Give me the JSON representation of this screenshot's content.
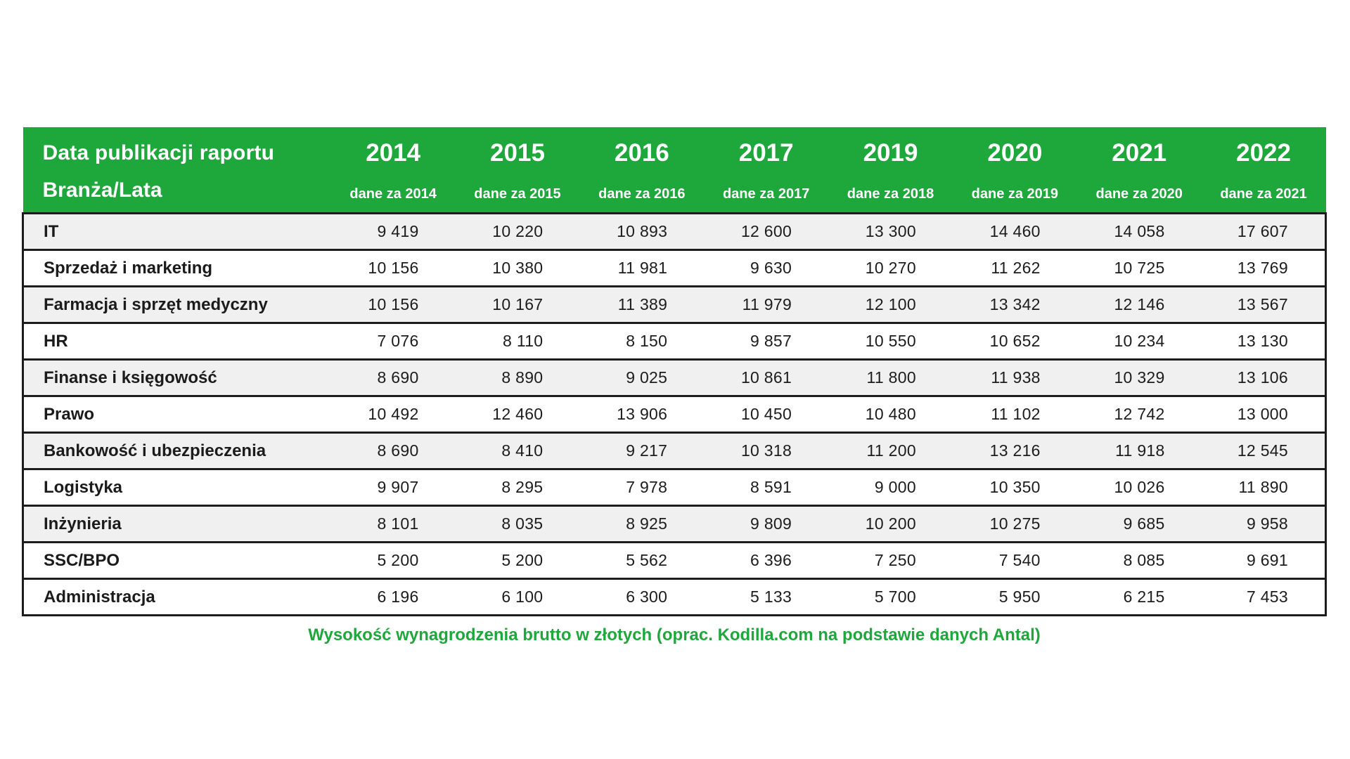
{
  "header": {
    "title_line1": "Data publikacji raportu",
    "title_line2": "Branża/Lata",
    "columns": [
      {
        "year": "2014",
        "sub": "dane za 2014"
      },
      {
        "year": "2015",
        "sub": "dane za 2015"
      },
      {
        "year": "2016",
        "sub": "dane za 2016"
      },
      {
        "year": "2017",
        "sub": "dane za 2017"
      },
      {
        "year": "2019",
        "sub": "dane za 2018"
      },
      {
        "year": "2020",
        "sub": "dane za 2019"
      },
      {
        "year": "2021",
        "sub": "dane za 2020"
      },
      {
        "year": "2022",
        "sub": "dane za 2021"
      }
    ]
  },
  "rows": [
    {
      "label": "IT",
      "values": [
        "9 419",
        "10 220",
        "10 893",
        "12 600",
        "13 300",
        "14 460",
        "14 058",
        "17 607"
      ]
    },
    {
      "label": "Sprzedaż i marketing",
      "values": [
        "10 156",
        "10 380",
        "11 981",
        "9 630",
        "10 270",
        "11 262",
        "10 725",
        "13 769"
      ]
    },
    {
      "label": "Farmacja i sprzęt medyczny",
      "values": [
        "10 156",
        "10 167",
        "11 389",
        "11 979",
        "12 100",
        "13 342",
        "12 146",
        "13 567"
      ]
    },
    {
      "label": "HR",
      "values": [
        "7 076",
        "8 110",
        "8 150",
        "9 857",
        "10 550",
        "10 652",
        "10 234",
        "13 130"
      ]
    },
    {
      "label": "Finanse i księgowość",
      "values": [
        "8 690",
        "8 890",
        "9 025",
        "10 861",
        "11 800",
        "11 938",
        "10 329",
        "13 106"
      ]
    },
    {
      "label": "Prawo",
      "values": [
        "10 492",
        "12 460",
        "13 906",
        "10 450",
        "10 480",
        "11 102",
        "12 742",
        "13 000"
      ]
    },
    {
      "label": "Bankowość i ubezpieczenia",
      "values": [
        "8 690",
        "8 410",
        "9 217",
        "10 318",
        "11 200",
        "13 216",
        "11 918",
        "12 545"
      ]
    },
    {
      "label": "Logistyka",
      "values": [
        "9 907",
        "8 295",
        "7 978",
        "8 591",
        "9 000",
        "10 350",
        "10 026",
        "11 890"
      ]
    },
    {
      "label": "Inżynieria",
      "values": [
        "8 101",
        "8 035",
        "8 925",
        "9 809",
        "10 200",
        "10 275",
        "9 685",
        "9 958"
      ]
    },
    {
      "label": "SSC/BPO",
      "values": [
        "5 200",
        "5 200",
        "5 562",
        "6 396",
        "7 250",
        "7 540",
        "8 085",
        "9 691"
      ]
    },
    {
      "label": "Administracja",
      "values": [
        "6 196",
        "6 100",
        "6 300",
        "5 133",
        "5 700",
        "5 950",
        "6 215",
        "7 453"
      ]
    }
  ],
  "caption": "Wysokość wynagrodzenia brutto w złotych (oprac. Kodilla.com na podstawie danych Antal)",
  "colors": {
    "header_green": "#1ea83c",
    "caption_green": "#1ea83c",
    "row_stripe": "#f0f0f0",
    "border_dark": "#1c1c1c"
  },
  "chart_data": {
    "type": "table",
    "title": "Wysokość wynagrodzenia brutto w złotych (oprac. Kodilla.com na podstawie danych Antal)",
    "column_headers_primary": [
      "2014",
      "2015",
      "2016",
      "2017",
      "2019",
      "2020",
      "2021",
      "2022"
    ],
    "column_headers_secondary": [
      "dane za 2014",
      "dane za 2015",
      "dane za 2016",
      "dane za 2017",
      "dane za 2018",
      "dane za 2019",
      "dane za 2020",
      "dane za 2021"
    ],
    "row_header_label_line1": "Data publikacji raportu",
    "row_header_label_line2": "Branża/Lata",
    "series": [
      {
        "name": "IT",
        "values": [
          9419,
          10220,
          10893,
          12600,
          13300,
          14460,
          14058,
          17607
        ]
      },
      {
        "name": "Sprzedaż i marketing",
        "values": [
          10156,
          10380,
          11981,
          9630,
          10270,
          11262,
          10725,
          13769
        ]
      },
      {
        "name": "Farmacja i sprzęt medyczny",
        "values": [
          10156,
          10167,
          11389,
          11979,
          12100,
          13342,
          12146,
          13567
        ]
      },
      {
        "name": "HR",
        "values": [
          7076,
          8110,
          8150,
          9857,
          10550,
          10652,
          10234,
          13130
        ]
      },
      {
        "name": "Finanse i księgowość",
        "values": [
          8690,
          8890,
          9025,
          10861,
          11800,
          11938,
          10329,
          13106
        ]
      },
      {
        "name": "Prawo",
        "values": [
          10492,
          12460,
          13906,
          10450,
          10480,
          11102,
          12742,
          13000
        ]
      },
      {
        "name": "Bankowość i ubezpieczenia",
        "values": [
          8690,
          8410,
          9217,
          10318,
          11200,
          13216,
          11918,
          12545
        ]
      },
      {
        "name": "Logistyka",
        "values": [
          9907,
          8295,
          7978,
          8591,
          9000,
          10350,
          10026,
          11890
        ]
      },
      {
        "name": "Inżynieria",
        "values": [
          8101,
          8035,
          8925,
          9809,
          10200,
          10275,
          9685,
          9958
        ]
      },
      {
        "name": "SSC/BPO",
        "values": [
          5200,
          5200,
          5562,
          6396,
          7250,
          7540,
          8085,
          9691
        ]
      },
      {
        "name": "Administracja",
        "values": [
          6196,
          6100,
          6300,
          5133,
          5700,
          5950,
          6215,
          7453
        ]
      }
    ]
  }
}
